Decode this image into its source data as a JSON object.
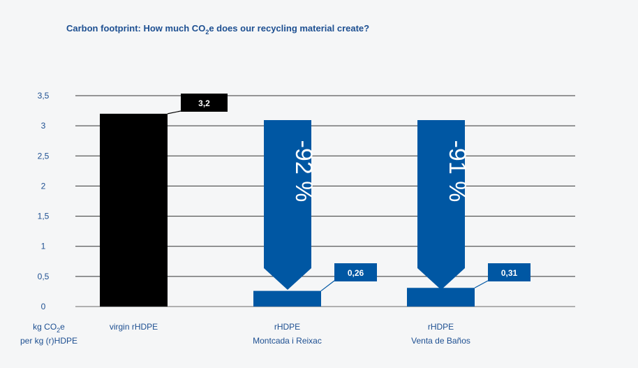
{
  "chart_data": {
    "type": "bar",
    "title": "Carbon footprint: How much CO2e does our recycling material create?",
    "title_parts": {
      "before": "Carbon footprint: How much CO",
      "sub": "2",
      "after": "e does our recycling material create?"
    },
    "ylabel_parts": {
      "line1_before": "kg CO",
      "line1_sub": "2",
      "line1_after": "e",
      "line2": "per kg (r)HDPE"
    },
    "categories": [
      {
        "line1": "virgin rHDPE",
        "line2": ""
      },
      {
        "line1": "rHDPE",
        "line2": "Montcada i Reixac"
      },
      {
        "line1": "rHDPE",
        "line2": "Venta de Baños"
      }
    ],
    "values": [
      3.2,
      0.26,
      0.31
    ],
    "data_labels": [
      "3,2",
      "0,26",
      "0,31"
    ],
    "reductions": [
      "",
      "-92 %",
      "-91 %"
    ],
    "ylim": [
      0,
      3.5
    ],
    "yticks": [
      "0",
      "0,5",
      "1",
      "1,5",
      "2",
      "2,5",
      "3",
      "3,5"
    ],
    "grid": true,
    "colors": {
      "virgin": "#000000",
      "recycled": "#0057a3",
      "text": "#1d4f91",
      "grid": "#333333"
    }
  }
}
